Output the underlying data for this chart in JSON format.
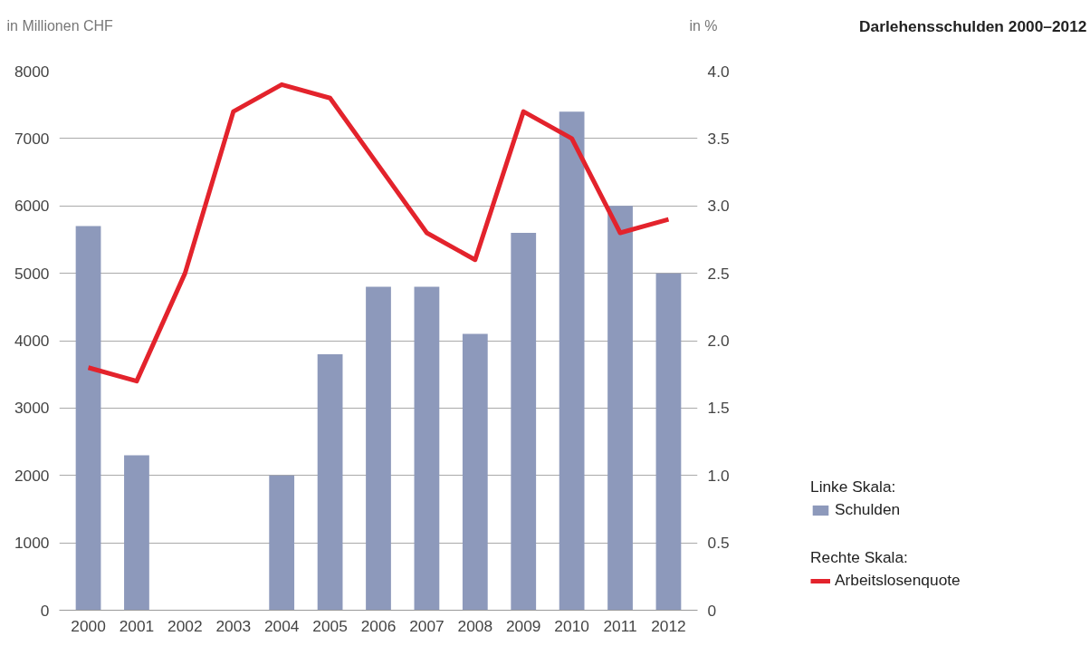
{
  "chart_data": {
    "type": "bar",
    "title": "Darlehensschulden 2000–2012",
    "ylabel": "in Millionen CHF",
    "y2label": "in %",
    "categories": [
      "2000",
      "2001",
      "2002",
      "2003",
      "2004",
      "2005",
      "2006",
      "2007",
      "2008",
      "2009",
      "2010",
      "2011",
      "2012"
    ],
    "series": [
      {
        "name": "Schulden",
        "color": "#8d99bb",
        "values": [
          5700,
          2300,
          0,
          0,
          2000,
          3800,
          4800,
          4800,
          4100,
          5600,
          7400,
          6000,
          5000
        ]
      },
      {
        "name": "Arbeitslosenquote",
        "type": "line",
        "axis": "y2",
        "color": "#e3232c",
        "values": [
          1.8,
          1.7,
          2.5,
          3.7,
          3.9,
          3.8,
          3.3,
          2.8,
          2.6,
          3.7,
          3.5,
          2.8,
          2.9
        ]
      }
    ],
    "ylim": [
      0,
      8000
    ],
    "yticks": [
      0,
      1000,
      2000,
      3000,
      4000,
      5000,
      6000,
      7000,
      8000
    ],
    "y2lim": [
      0,
      4
    ],
    "y2ticks": [
      {
        "value": 0,
        "label": "0"
      },
      {
        "value": 0.5,
        "label": "0.5"
      },
      {
        "value": 1,
        "label": "1.0"
      },
      {
        "value": 1.5,
        "label": "1.5"
      },
      {
        "value": 2,
        "label": "2.0"
      },
      {
        "value": 2.5,
        "label": "2.5"
      },
      {
        "value": 3,
        "label": "3.0"
      },
      {
        "value": 3.5,
        "label": "3.5"
      },
      {
        "value": 4,
        "label": "4.0"
      }
    ],
    "annotations": [
      "Linke Skala:",
      "Rechte Skala:"
    ],
    "grid": "y",
    "legend": "bottom right",
    "line_style": "solid",
    "marker": "none"
  }
}
